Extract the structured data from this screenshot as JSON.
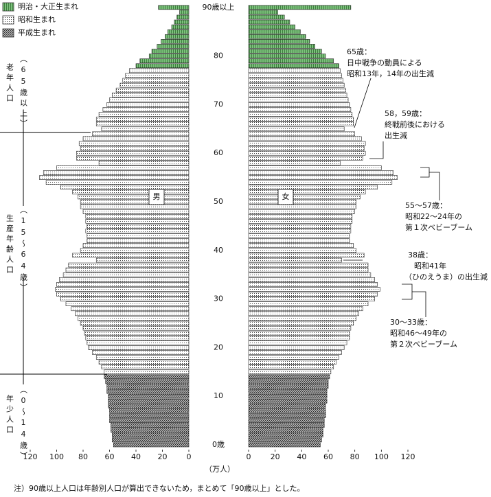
{
  "chart_data": {
    "type": "pyramid",
    "categories": [
      "0歳",
      null,
      null,
      null,
      null,
      null,
      null,
      null,
      null,
      null,
      "10",
      null,
      null,
      null,
      null,
      null,
      null,
      null,
      null,
      null,
      "20",
      null,
      null,
      null,
      null,
      null,
      null,
      null,
      null,
      null,
      "30",
      null,
      null,
      null,
      null,
      null,
      null,
      null,
      null,
      null,
      "40",
      null,
      null,
      null,
      null,
      null,
      null,
      null,
      null,
      null,
      "50",
      null,
      null,
      null,
      null,
      null,
      null,
      null,
      null,
      null,
      "60",
      null,
      null,
      null,
      null,
      null,
      null,
      null,
      null,
      null,
      "70",
      null,
      null,
      null,
      null,
      null,
      null,
      null,
      null,
      null,
      "80",
      null,
      null,
      null,
      null,
      null,
      null,
      null,
      null,
      null,
      "90歳以上"
    ],
    "legend": [
      {
        "name": "明治・大正生まれ",
        "color": "#7cc07c",
        "pattern": "vertical"
      },
      {
        "name": "昭和生まれ",
        "color": "#444444",
        "pattern": "dots"
      },
      {
        "name": "平成生まれ",
        "color": "#222222",
        "pattern": "diagonal"
      }
    ],
    "x_label": "（万人）",
    "panels": [
      {
        "label": "男",
        "reversed": true,
        "xlim": [
          0,
          120
        ],
        "xticks": [
          0,
          20,
          40,
          60,
          80,
          100,
          120
        ],
        "series": [
          {
            "values": [
              null,
              null,
              null,
              null,
              null,
              null,
              null,
              null,
              null,
              null,
              null,
              null,
              null,
              null,
              null,
              null,
              null,
              null,
              null,
              null,
              null,
              null,
              null,
              null,
              null,
              null,
              null,
              null,
              null,
              null,
              null,
              null,
              null,
              null,
              null,
              null,
              null,
              null,
              null,
              null,
              null,
              null,
              null,
              null,
              null,
              null,
              null,
              null,
              null,
              null,
              null,
              null,
              null,
              null,
              null,
              null,
              null,
              null,
              null,
              null,
              null,
              null,
              null,
              null,
              null,
              null,
              null,
              null,
              null,
              null,
              null,
              null,
              null,
              null,
              null,
              null,
              null,
              null,
              40,
              37,
              30,
              28,
              24,
              21,
              18,
              16,
              13,
              11,
              9,
              7,
              23
            ]
          },
          {
            "values": [
              null,
              null,
              null,
              null,
              null,
              null,
              null,
              null,
              null,
              null,
              null,
              null,
              null,
              null,
              null,
              64,
              66,
              68,
              70,
              73,
              76,
              77,
              78,
              79,
              80,
              82,
              84,
              86,
              89,
              93,
              97,
              100,
              101,
              100,
              98,
              95,
              93,
              91,
              70,
              88,
              82,
              80,
              77,
              77,
              78,
              77,
              78,
              78,
              80,
              82,
              82,
              84,
              88,
              97,
              108,
              113,
              110,
              100,
              68,
              85,
              85,
              82,
              83,
              80,
              73,
              66,
              70,
              70,
              68,
              65,
              62,
              60,
              58,
              55,
              52,
              50,
              48,
              45,
              null,
              null,
              null,
              null,
              null,
              null,
              null,
              null,
              null,
              null,
              null,
              null,
              null
            ]
          },
          {
            "values": [
              57,
              58,
              58,
              59,
              59,
              60,
              60,
              60,
              61,
              61,
              61,
              62,
              62,
              63,
              64,
              null,
              null,
              null,
              null,
              null,
              null,
              null,
              null,
              null,
              null,
              null,
              null,
              null,
              null,
              null,
              null,
              null,
              null,
              null,
              null,
              null,
              null,
              null,
              null,
              null,
              null,
              null,
              null,
              null,
              null,
              null,
              null,
              null,
              null,
              null,
              null,
              null,
              null,
              null,
              null,
              null,
              null,
              null,
              null,
              null,
              null,
              null,
              null,
              null,
              null,
              null,
              null,
              null,
              null,
              null,
              null,
              null,
              null,
              null,
              null,
              null,
              null,
              null,
              null,
              null,
              null,
              null,
              null,
              null,
              null,
              null,
              null,
              null,
              null,
              null,
              null
            ]
          }
        ]
      },
      {
        "label": "女",
        "reversed": false,
        "xlim": [
          0,
          120
        ],
        "xticks": [
          0,
          20,
          40,
          60,
          80,
          100,
          120
        ],
        "series": [
          {
            "values": [
              null,
              null,
              null,
              null,
              null,
              null,
              null,
              null,
              null,
              null,
              null,
              null,
              null,
              null,
              null,
              null,
              null,
              null,
              null,
              null,
              null,
              null,
              null,
              null,
              null,
              null,
              null,
              null,
              null,
              null,
              null,
              null,
              null,
              null,
              null,
              null,
              null,
              null,
              null,
              null,
              null,
              null,
              null,
              null,
              null,
              null,
              null,
              null,
              null,
              null,
              null,
              null,
              null,
              null,
              null,
              null,
              null,
              null,
              null,
              null,
              null,
              null,
              null,
              null,
              null,
              null,
              null,
              null,
              null,
              null,
              null,
              null,
              null,
              null,
              null,
              null,
              null,
              null,
              68,
              64,
              58,
              55,
              50,
              46,
              43,
              39,
              35,
              31,
              27,
              22,
              77
            ]
          },
          {
            "values": [
              null,
              null,
              null,
              null,
              null,
              null,
              null,
              null,
              null,
              null,
              null,
              null,
              null,
              null,
              null,
              62,
              64,
              66,
              68,
              70,
              72,
              74,
              76,
              76,
              77,
              79,
              81,
              83,
              86,
              90,
              95,
              97,
              99,
              97,
              95,
              92,
              90,
              90,
              70,
              87,
              81,
              79,
              76,
              76,
              77,
              77,
              78,
              78,
              80,
              81,
              81,
              84,
              88,
              97,
              108,
              112,
              109,
              100,
              69,
              86,
              88,
              87,
              88,
              85,
              80,
              72,
              79,
              79,
              78,
              77,
              76,
              75,
              74,
              73,
              72,
              71,
              70,
              69,
              null,
              null,
              null,
              null,
              null,
              null,
              null,
              null,
              null,
              null,
              null,
              null,
              null
            ]
          },
          {
            "values": [
              54,
              55,
              56,
              56,
              57,
              57,
              58,
              58,
              58,
              59,
              59,
              59,
              60,
              60,
              61,
              null,
              null,
              null,
              null,
              null,
              null,
              null,
              null,
              null,
              null,
              null,
              null,
              null,
              null,
              null,
              null,
              null,
              null,
              null,
              null,
              null,
              null,
              null,
              null,
              null,
              null,
              null,
              null,
              null,
              null,
              null,
              null,
              null,
              null,
              null,
              null,
              null,
              null,
              null,
              null,
              null,
              null,
              null,
              null,
              null,
              null,
              null,
              null,
              null,
              null,
              null,
              null,
              null,
              null,
              null,
              null,
              null,
              null,
              null,
              null,
              null,
              null,
              null,
              null,
              null,
              null,
              null,
              null,
              null,
              null,
              null,
              null,
              null,
              null,
              null,
              null
            ]
          }
        ]
      }
    ],
    "age_groups": [
      {
        "label": "老年人口",
        "range": "（65歳以上）"
      },
      {
        "label": "生産年齢人口",
        "range": "（15～64歳）"
      },
      {
        "label": "年少人口",
        "range": "（0～14歳）"
      }
    ],
    "annotations": [
      {
        "lines": [
          "65歳：",
          "日中戦争の動員による",
          "昭和13年，14年の出生減"
        ]
      },
      {
        "lines": [
          "58，59歳：",
          "終戦前後における",
          "出生減"
        ]
      },
      {
        "lines": [
          "55～57歳：",
          "昭和22～24年の",
          "第１次ベビーブーム"
        ]
      },
      {
        "lines": [
          "38歳：",
          "昭和41年",
          "（ひのえうま）の出生減"
        ]
      },
      {
        "lines": [
          "30～33歳：",
          "昭和46～49年の",
          "第２次ベビーブーム"
        ]
      }
    ],
    "note": "注）90歳以上人口は年齢別人口が算出できないため，まとめて「90歳以上」とした。"
  }
}
